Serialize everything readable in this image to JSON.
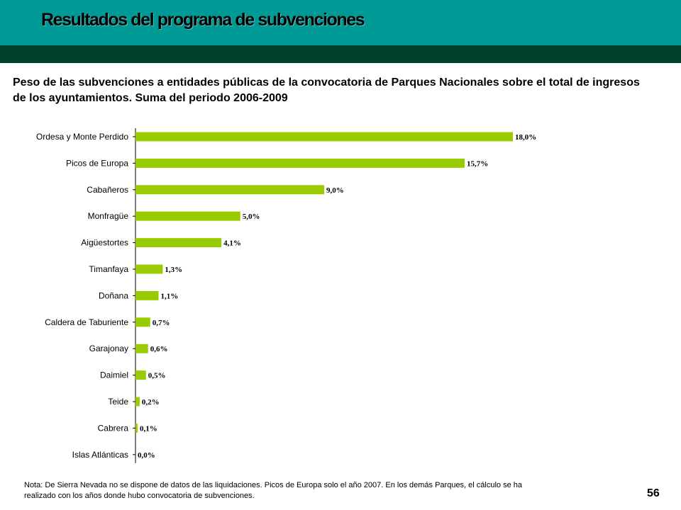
{
  "header": {
    "title": "Resultados del programa de subvenciones",
    "band_color": "#009a96",
    "dark_band_color": "#003f2b"
  },
  "chart_data": {
    "type": "bar",
    "orientation": "horizontal",
    "title": "Peso de las subvenciones a entidades públicas de la convocatoria de Parques Nacionales sobre el total de ingresos de los ayuntamientos. Suma del periodo 2006-2009",
    "categories": [
      "Ordesa y Monte Perdido",
      "Picos de Europa",
      "Cabañeros",
      "Monfragüe",
      "Aigüestortes",
      "Timanfaya",
      "Doñana",
      "Caldera de Taburiente",
      "Garajonay",
      "Daimiel",
      "Teide",
      "Cabrera",
      "Islas Atlánticas"
    ],
    "values": [
      18.0,
      15.7,
      9.0,
      5.0,
      4.1,
      1.3,
      1.1,
      0.7,
      0.6,
      0.5,
      0.2,
      0.1,
      0.0
    ],
    "value_labels": [
      "18,0%",
      "15,7%",
      "9,0%",
      "5,0%",
      "4,1%",
      "1,3%",
      "1,1%",
      "0,7%",
      "0,6%",
      "0,5%",
      "0,2%",
      "0,1%",
      "0,0%"
    ],
    "xlim": [
      0,
      18.0
    ],
    "bar_color": "#99cc00",
    "grid": false,
    "legend": "none"
  },
  "note": "Nota: De Sierra Nevada no se dispone de datos de las liquidaciones. Picos de Europa solo el año 2007. En los demás Parques, el cálculo se ha realizado con los años donde hubo convocatoria de subvenciones.",
  "page_number": "56"
}
